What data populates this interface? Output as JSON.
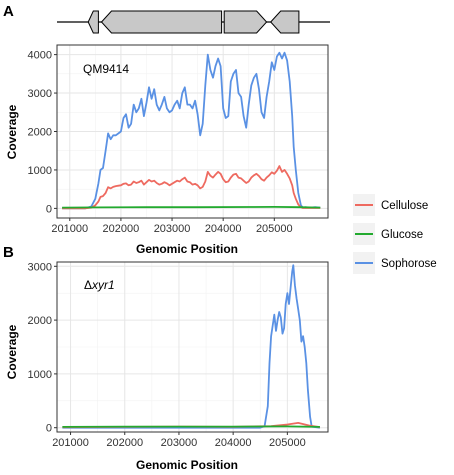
{
  "legend": {
    "entries": [
      {
        "name": "Cellulose",
        "color": "#ee6a60"
      },
      {
        "name": "Glucose",
        "color": "#23aa2f"
      },
      {
        "name": "Sophorose",
        "color": "#5a91e4"
      }
    ]
  },
  "gene_map": {
    "genes": [
      {
        "start": 201360,
        "end": 201560,
        "strand": "-"
      },
      {
        "start": 201620,
        "end": 203970,
        "strand": "-"
      },
      {
        "start": 204020,
        "end": 204850,
        "strand": "+"
      },
      {
        "start": 204930,
        "end": 205480,
        "strand": "-"
      }
    ]
  },
  "chart_data": [
    {
      "type": "line",
      "panel_label": "A",
      "annotation": "QM9414",
      "annotation_italic": "",
      "xlabel": "Genomic Position",
      "ylabel": "Coverage",
      "xlim": [
        200750,
        206050
      ],
      "ylim": [
        -250,
        4250
      ],
      "x_ticks": [
        201000,
        202000,
        203000,
        204000,
        205000
      ],
      "y_ticks": [
        0,
        1000,
        2000,
        3000,
        4000
      ],
      "grid": true,
      "series": [
        {
          "name": "Sophorose",
          "color": "#5a91e4",
          "x": [
            200850,
            201300,
            201420,
            201500,
            201560,
            201600,
            201650,
            201700,
            201750,
            201800,
            201850,
            201900,
            201950,
            202000,
            202050,
            202100,
            202150,
            202200,
            202250,
            202300,
            202350,
            202400,
            202450,
            202500,
            202550,
            202600,
            202650,
            202700,
            202750,
            202800,
            202850,
            202900,
            202950,
            203000,
            203050,
            203100,
            203150,
            203200,
            203250,
            203300,
            203350,
            203400,
            203450,
            203500,
            203550,
            203600,
            203650,
            203700,
            203750,
            203800,
            203850,
            203900,
            203950,
            204000,
            204050,
            204100,
            204150,
            204200,
            204250,
            204300,
            204350,
            204400,
            204450,
            204500,
            204550,
            204600,
            204650,
            204700,
            204750,
            204800,
            204850,
            204900,
            204950,
            205000,
            205050,
            205100,
            205150,
            205200,
            205250,
            205300,
            205350,
            205380,
            205420,
            205470,
            205520,
            205560,
            205600,
            205700,
            205800,
            205900
          ],
          "y": [
            0,
            0,
            50,
            250,
            650,
            1000,
            1050,
            1500,
            1950,
            1800,
            1900,
            1900,
            1950,
            2000,
            2350,
            2450,
            2100,
            2200,
            2700,
            2500,
            2600,
            2850,
            2400,
            2750,
            3150,
            2850,
            3100,
            2700,
            2550,
            2700,
            2900,
            2600,
            2500,
            2550,
            2700,
            2800,
            2600,
            3000,
            3150,
            2700,
            2700,
            2600,
            2800,
            2450,
            1900,
            2200,
            3200,
            4000,
            3600,
            3400,
            3700,
            3900,
            3700,
            2600,
            2350,
            2400,
            3300,
            3500,
            3600,
            3000,
            2900,
            2400,
            2100,
            2700,
            3200,
            3400,
            3500,
            3100,
            2500,
            2350,
            2900,
            3300,
            3800,
            3600,
            3950,
            4050,
            3900,
            4050,
            3850,
            3300,
            2400,
            1600,
            1000,
            400,
            80,
            20,
            30,
            20,
            30,
            20
          ]
        },
        {
          "name": "Cellulose",
          "color": "#ee6a60",
          "x": [
            200850,
            201300,
            201420,
            201500,
            201560,
            201600,
            201650,
            201700,
            201750,
            201800,
            201850,
            201900,
            201950,
            202000,
            202050,
            202100,
            202150,
            202200,
            202250,
            202300,
            202350,
            202400,
            202450,
            202500,
            202550,
            202600,
            202650,
            202700,
            202750,
            202800,
            202850,
            202900,
            202950,
            203000,
            203050,
            203100,
            203150,
            203200,
            203250,
            203300,
            203350,
            203400,
            203450,
            203500,
            203550,
            203600,
            203650,
            203700,
            203750,
            203800,
            203850,
            203900,
            203950,
            204000,
            204050,
            204100,
            204150,
            204200,
            204250,
            204300,
            204350,
            204400,
            204450,
            204500,
            204550,
            204600,
            204650,
            204700,
            204750,
            204800,
            204850,
            204900,
            204950,
            205000,
            205050,
            205100,
            205150,
            205200,
            205250,
            205300,
            205350,
            205380,
            205420,
            205470,
            205520,
            205560,
            205600,
            205700,
            205800,
            205900
          ],
          "y": [
            0,
            0,
            20,
            80,
            180,
            300,
            320,
            400,
            550,
            520,
            560,
            580,
            590,
            600,
            640,
            650,
            600,
            620,
            700,
            660,
            680,
            720,
            620,
            680,
            740,
            700,
            720,
            660,
            620,
            640,
            680,
            650,
            600,
            640,
            680,
            720,
            700,
            760,
            800,
            700,
            680,
            620,
            640,
            600,
            520,
            560,
            700,
            950,
            850,
            800,
            880,
            950,
            900,
            760,
            680,
            700,
            800,
            880,
            900,
            800,
            780,
            720,
            660,
            700,
            800,
            860,
            900,
            840,
            760,
            720,
            800,
            860,
            940,
            900,
            980,
            1100,
            950,
            1000,
            900,
            780,
            600,
            400,
            250,
            100,
            30,
            10,
            10,
            10,
            10,
            10
          ]
        },
        {
          "name": "Glucose",
          "color": "#23aa2f",
          "x": [
            200850,
            201500,
            202500,
            203500,
            204500,
            205000,
            205500,
            205900
          ],
          "y": [
            20,
            25,
            30,
            30,
            35,
            40,
            30,
            20
          ]
        }
      ]
    },
    {
      "type": "line",
      "panel_label": "B",
      "annotation": "Δ",
      "annotation_italic": "xyr1",
      "xlabel": "Genomic Position",
      "ylabel": "Coverage",
      "xlim": [
        200750,
        205750
      ],
      "ylim": [
        -80,
        3080
      ],
      "x_ticks": [
        201000,
        202000,
        203000,
        204000,
        205000
      ],
      "y_ticks": [
        0,
        1000,
        2000,
        3000
      ],
      "grid": true,
      "series": [
        {
          "name": "Sophorose",
          "color": "#5a91e4",
          "x": [
            200850,
            204500,
            204580,
            204640,
            204670,
            204700,
            204730,
            204760,
            204790,
            204820,
            204850,
            204880,
            204910,
            204940,
            204970,
            205000,
            205030,
            205060,
            205090,
            205110,
            205140,
            205170,
            205200,
            205230,
            205260,
            205290,
            205320,
            205350,
            205380,
            205420,
            205450,
            205600
          ],
          "y": [
            0,
            0,
            30,
            400,
            1200,
            1700,
            1900,
            2100,
            1800,
            2000,
            2150,
            2050,
            1750,
            1850,
            2300,
            2500,
            2300,
            2600,
            2900,
            3020,
            2650,
            2400,
            2200,
            2000,
            1600,
            1700,
            1500,
            1200,
            700,
            200,
            20,
            0
          ]
        },
        {
          "name": "Cellulose",
          "color": "#ee6a60",
          "x": [
            200850,
            202000,
            203000,
            204000,
            204700,
            205000,
            205200,
            205400,
            205600
          ],
          "y": [
            10,
            15,
            20,
            15,
            30,
            60,
            90,
            40,
            10
          ]
        },
        {
          "name": "Glucose",
          "color": "#23aa2f",
          "x": [
            200850,
            202000,
            203000,
            204000,
            205000,
            205600
          ],
          "y": [
            15,
            20,
            20,
            20,
            25,
            15
          ]
        }
      ]
    }
  ]
}
